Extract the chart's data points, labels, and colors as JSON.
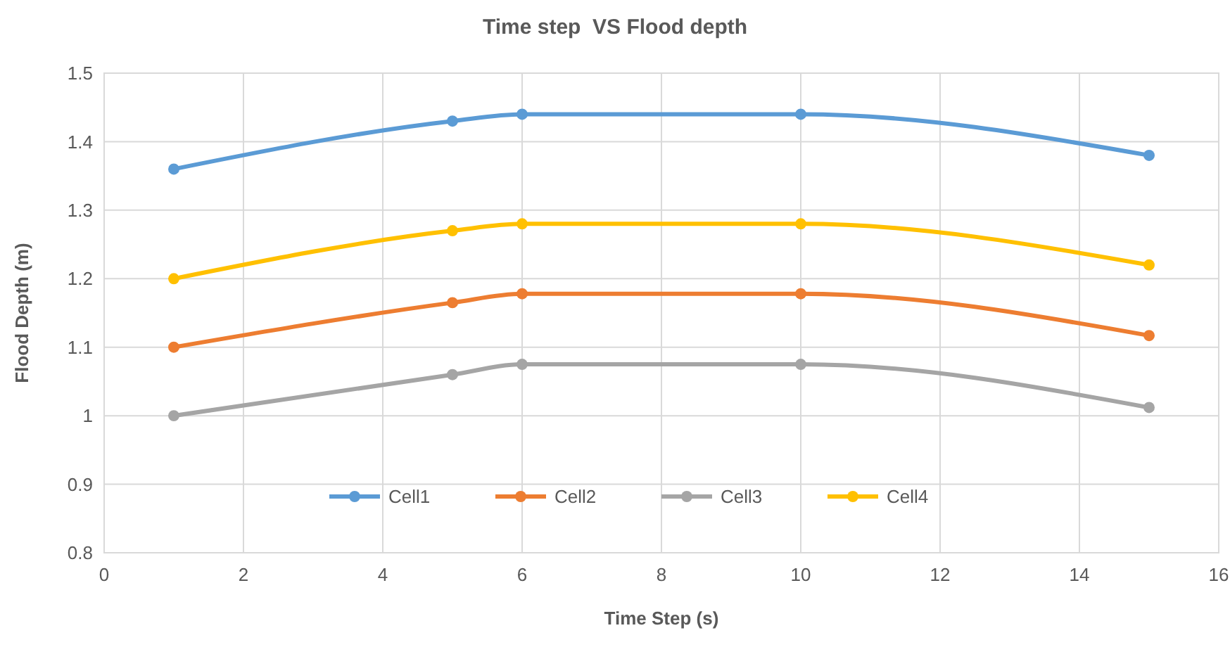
{
  "chart_data": {
    "type": "line",
    "title": "Time step  VS Flood depth",
    "xlabel": "Time Step (s)",
    "ylabel": "Flood Depth (m)",
    "x": [
      1,
      5,
      6,
      10,
      15
    ],
    "series": [
      {
        "name": "Cell1",
        "color": "#5b9bd5",
        "values": [
          1.36,
          1.43,
          1.44,
          1.44,
          1.38
        ]
      },
      {
        "name": "Cell2",
        "color": "#ed7d31",
        "values": [
          1.1,
          1.165,
          1.178,
          1.178,
          1.117
        ]
      },
      {
        "name": "Cell3",
        "color": "#a5a5a5",
        "values": [
          1.0,
          1.06,
          1.075,
          1.075,
          1.012
        ]
      },
      {
        "name": "Cell4",
        "color": "#ffc000",
        "values": [
          1.2,
          1.27,
          1.28,
          1.28,
          1.22
        ]
      }
    ],
    "xlim": [
      0,
      16
    ],
    "xticks": [
      0,
      2,
      4,
      6,
      8,
      10,
      12,
      14,
      16
    ],
    "ylim": [
      0.8,
      1.5
    ],
    "yticks": [
      0.8,
      0.9,
      1,
      1.1,
      1.2,
      1.3,
      1.4,
      1.5
    ],
    "grid": true,
    "legend": "bottom",
    "marker": "circle",
    "line_style": "solid"
  }
}
